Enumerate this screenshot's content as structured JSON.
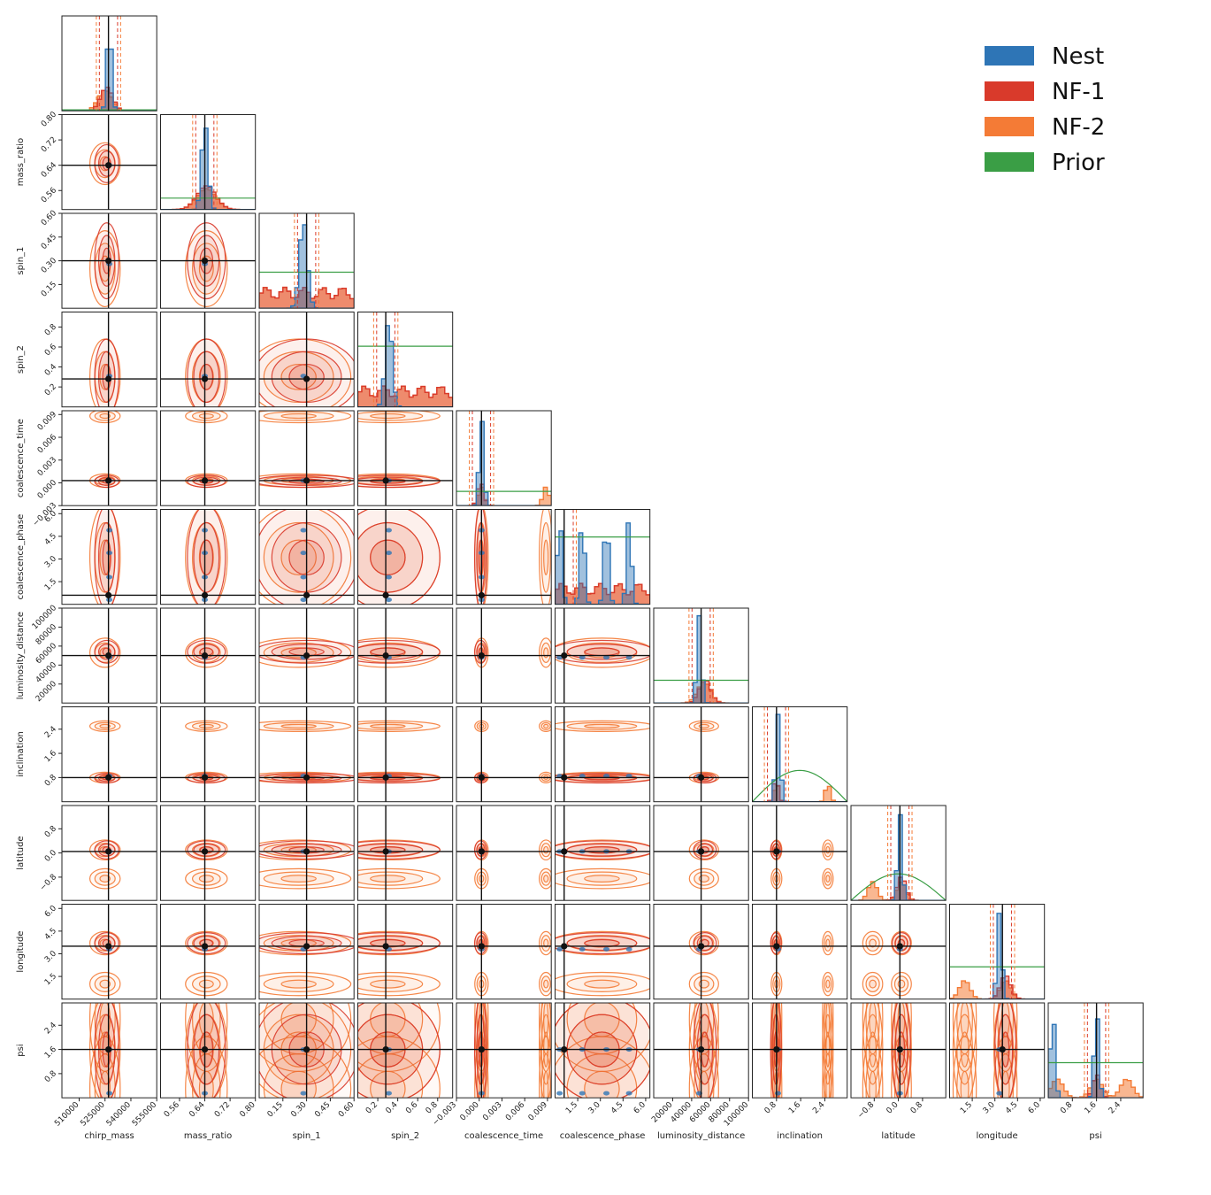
{
  "chart_data": {
    "type": "corner",
    "parameters": [
      "chirp_mass",
      "mass_ratio",
      "spin_1",
      "spin_2",
      "coalescence_time",
      "coalescence_phase",
      "luminosity_distance",
      "inclination",
      "latitude",
      "longitude",
      "psi"
    ],
    "truths": [
      527000,
      0.64,
      0.3,
      0.28,
      0.0003,
      0.6,
      50000,
      0.8,
      0.05,
      3.5,
      1.6
    ],
    "ranges": [
      [
        500000,
        555000
      ],
      [
        0.5,
        0.8
      ],
      [
        0.0,
        0.6
      ],
      [
        0.0,
        0.95
      ],
      [
        -0.003,
        0.0095
      ],
      [
        0.0,
        6.28
      ],
      [
        0,
        100000
      ],
      [
        0.0,
        3.14
      ],
      [
        -1.57,
        1.57
      ],
      [
        0.0,
        6.28
      ],
      [
        0.0,
        3.14
      ]
    ],
    "ticks": [
      [
        "510000",
        "525000",
        "540000",
        "555000"
      ],
      [
        "0.56",
        "0.64",
        "0.72",
        "0.80"
      ],
      [
        "0.15",
        "0.30",
        "0.45",
        "0.60"
      ],
      [
        "0.2",
        "0.4",
        "0.6",
        "0.8"
      ],
      [
        "−0.003",
        "0.000",
        "0.003",
        "0.006",
        "0.009"
      ],
      [
        "1.5",
        "3.0",
        "4.5",
        "6.0"
      ],
      [
        "20000",
        "40000",
        "60000",
        "80000",
        "100000"
      ],
      [
        "0.8",
        "1.6",
        "2.4"
      ],
      [
        "−0.8",
        "0.0",
        "0.8"
      ],
      [
        "1.5",
        "3.0",
        "4.5",
        "6.0"
      ],
      [
        "0.8",
        "1.6",
        "2.4"
      ]
    ],
    "ytick_values": [
      null,
      [
        "0.56",
        "0.64",
        "0.72",
        "0.80"
      ],
      [
        "0.15",
        "0.30",
        "0.45",
        "0.60"
      ],
      [
        "0.2",
        "0.4",
        "0.6",
        "0.8"
      ],
      [
        "−0.003",
        "0.000",
        "0.003",
        "0.006",
        "0.009"
      ],
      [
        "1.5",
        "3.0",
        "4.5",
        "6.0"
      ],
      [
        "20000",
        "40000",
        "60000",
        "80000",
        "100000"
      ],
      [
        "0.8",
        "1.6",
        "2.4"
      ],
      [
        "−0.8",
        "0.0",
        "0.8"
      ],
      [
        "1.5",
        "3.0",
        "4.5",
        "6.0"
      ],
      [
        "0.8",
        "1.6",
        "2.4"
      ]
    ],
    "series": [
      {
        "name": "Nest",
        "color": "#2e75b6",
        "modes": [
          [
            527500
          ],
          [
            0.64
          ],
          [
            0.28
          ],
          [
            0.31
          ],
          [
            0.0003
          ],
          [
            0.3,
            1.8,
            3.4,
            4.9
          ],
          [
            48000
          ],
          [
            0.85
          ],
          [
            0.05
          ],
          [
            3.3
          ],
          [
            0.15,
            1.6
          ]
        ],
        "widths": [
          900,
          0.01,
          0.025,
          0.035,
          0.0002,
          0.08,
          2500,
          0.05,
          0.05,
          0.12,
          0.05
        ]
      },
      {
        "name": "NF-1",
        "color": "#d93a2b",
        "modes": [
          [
            526000
          ],
          [
            0.645
          ],
          [
            0.3
          ],
          [
            0.3
          ],
          [
            0.0002
          ],
          [
            3.1
          ],
          [
            54000
          ],
          [
            0.78
          ],
          [
            0.1
          ],
          [
            3.7
          ],
          [
            1.6
          ]
        ],
        "widths": [
          3500,
          0.03,
          0.12,
          0.2,
          0.0004,
          3.5,
          6000,
          0.08,
          0.15,
          0.35,
          0.12
        ]
      },
      {
        "name": "NF-2",
        "color": "#f47b36",
        "modes": [
          [
            525000
          ],
          [
            0.645
          ],
          [
            0.25
          ],
          [
            0.3
          ],
          [
            0.0003,
            0.0088
          ],
          [
            3.1
          ],
          [
            53000
          ],
          [
            0.8,
            2.5
          ],
          [
            0.1,
            -0.85
          ],
          [
            3.7,
            1.0
          ],
          [
            1.6,
            0.3,
            2.6
          ]
        ],
        "widths": [
          4000,
          0.03,
          0.13,
          0.2,
          0.0004,
          3.5,
          7000,
          0.08,
          0.15,
          0.35,
          0.2
        ]
      },
      {
        "name": "Prior",
        "color": "#3a9e45"
      }
    ],
    "legend": {
      "position": "top-right",
      "entries": [
        "Nest",
        "NF-1",
        "NF-2",
        "Prior"
      ]
    }
  }
}
